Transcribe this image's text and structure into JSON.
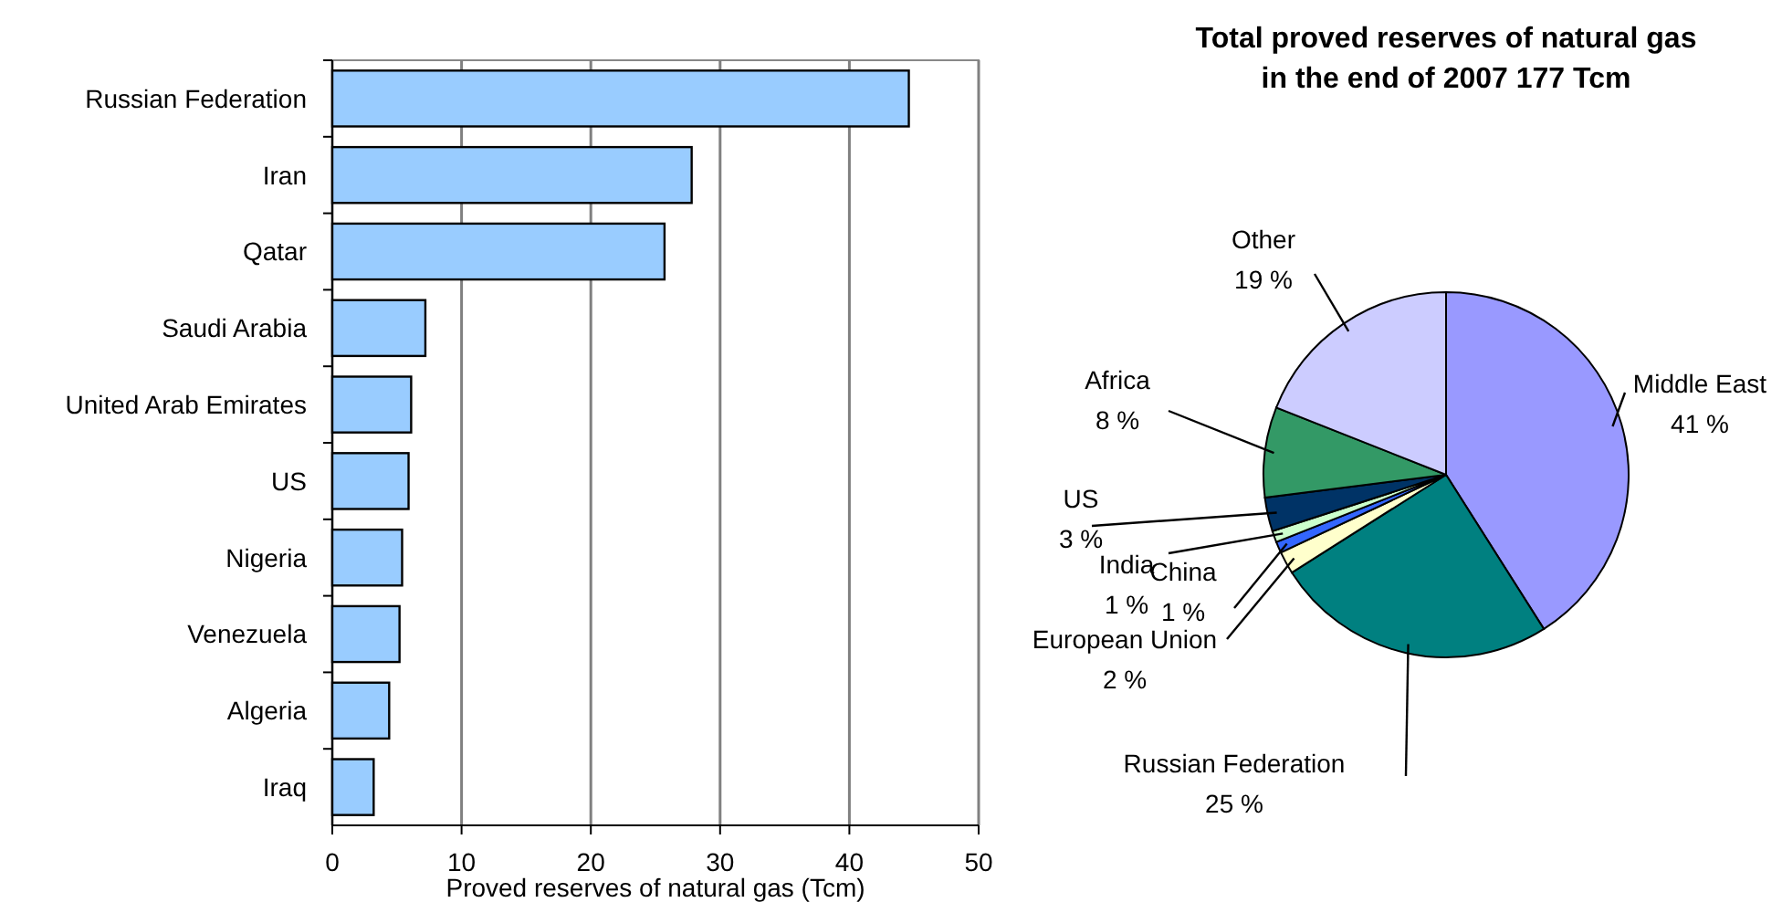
{
  "chart_data": [
    {
      "type": "bar",
      "orientation": "horizontal",
      "categories": [
        "Russian Federation",
        "Iran",
        "Qatar",
        "Saudi Arabia",
        "United Arab Emirates",
        "US",
        "Nigeria",
        "Venezuela",
        "Algeria",
        "Iraq"
      ],
      "values": [
        44.6,
        27.8,
        25.7,
        7.2,
        6.1,
        5.9,
        5.4,
        5.2,
        4.4,
        3.2
      ],
      "color": "#99ccff",
      "xlim": [
        0,
        50
      ],
      "xticks": [
        0,
        10,
        20,
        30,
        40,
        50
      ],
      "grid": "x",
      "xlabel": "Proved reserves of natural gas (Tcm)"
    },
    {
      "type": "pie",
      "title": "Total proved reserves of natural gas\nin the end of 2007 177 Tcm",
      "categories": [
        "Middle East",
        "Russian Federation",
        "European Union",
        "China",
        "India",
        "US",
        "Africa",
        "Other"
      ],
      "values": [
        41,
        25,
        2,
        1,
        1,
        3,
        8,
        19
      ],
      "value_labels": [
        "41 %",
        "25 %",
        "2 %",
        "1 %",
        "1 %",
        "3 %",
        "8 %",
        "19 %"
      ],
      "colors": [
        "#9999ff",
        "#008080",
        "#ffffcc",
        "#3366ff",
        "#ccffcc",
        "#003366",
        "#339966",
        "#ccccff"
      ]
    }
  ]
}
